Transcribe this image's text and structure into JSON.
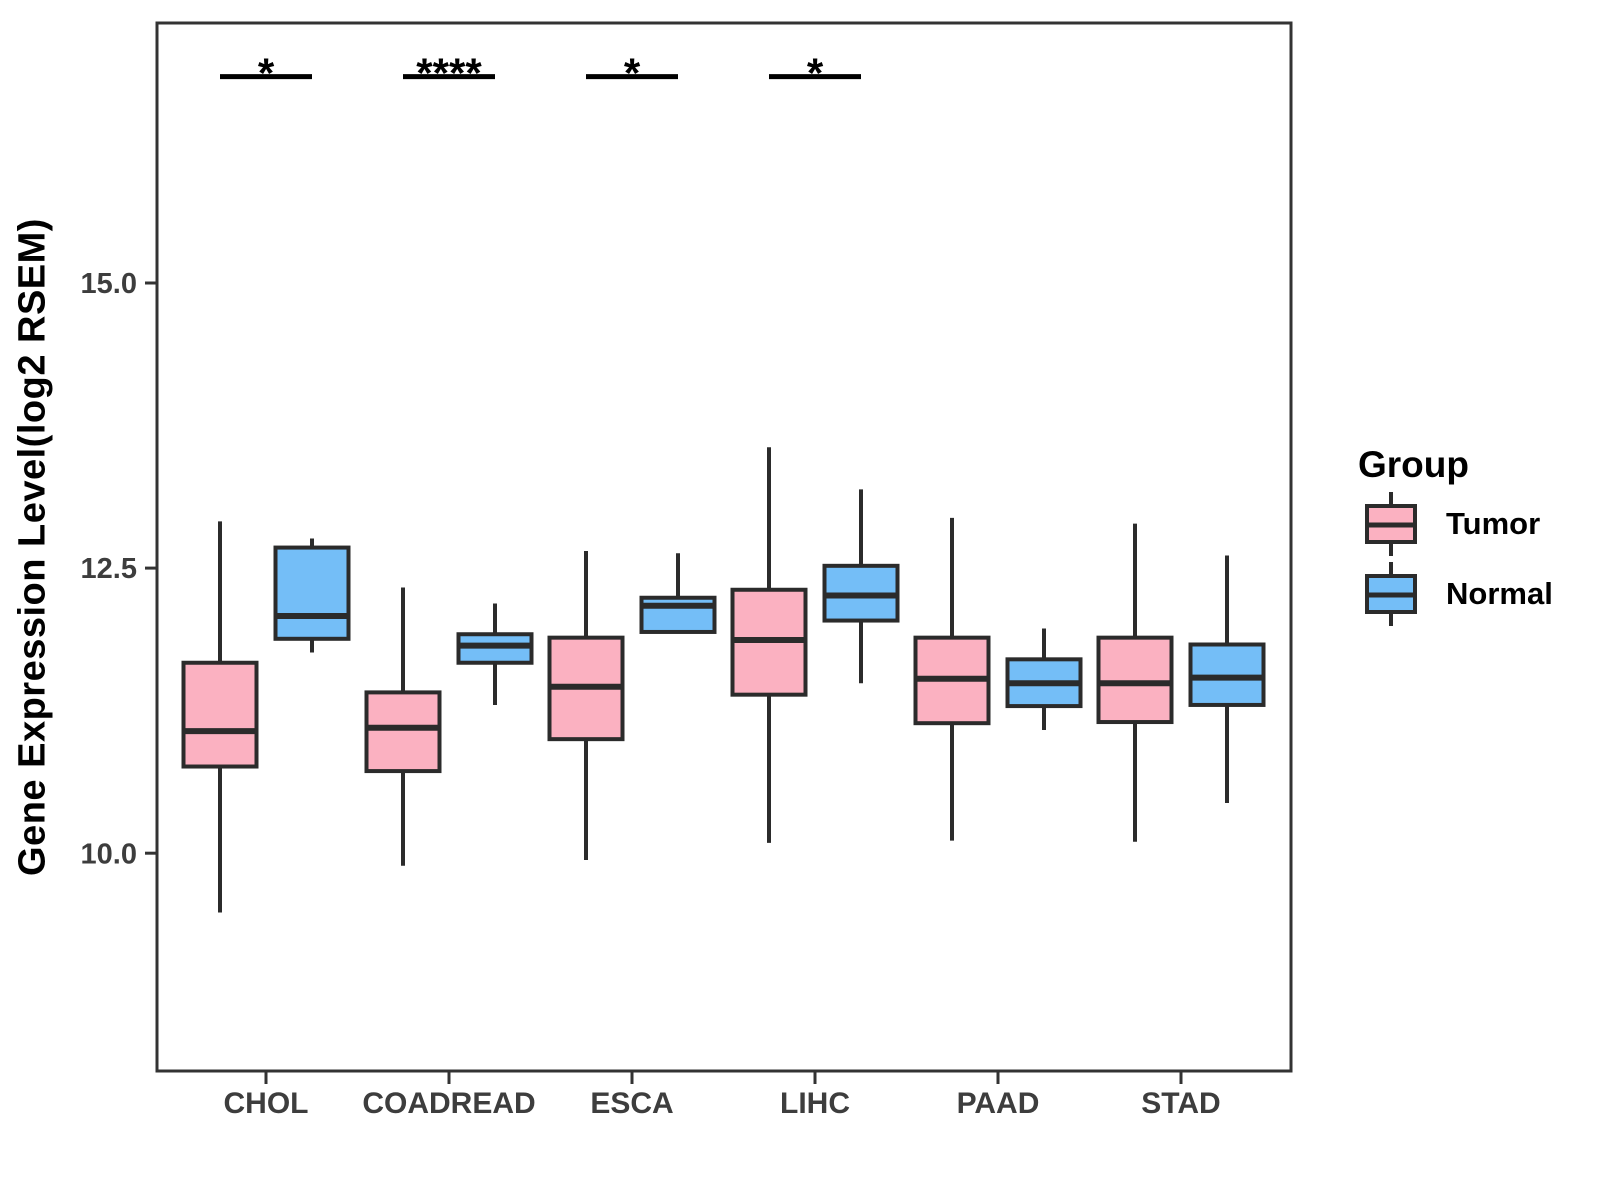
{
  "figure": {
    "legend": {
      "title": "Group",
      "position": "right"
    }
  },
  "colors": {
    "tumor_fill": "#FBB1C1",
    "normal_fill": "#74BEF7",
    "box_stroke": "#2B2B2B",
    "panel_border": "#333333",
    "axis_text": "#3D3D3D",
    "annotation": "#000000",
    "background": "#FFFFFF"
  },
  "chart_data": {
    "type": "boxplot",
    "title": "",
    "xlabel": "",
    "ylabel": "Gene Expression Level(log2 RSEM)",
    "categories": [
      "CHOL",
      "COADREAD",
      "ESCA",
      "LIHC",
      "PAAD",
      "STAD"
    ],
    "y_ticks": [
      {
        "value": 15.0,
        "label": "15.0"
      },
      {
        "value": 12.5,
        "label": "12.5"
      },
      {
        "value": 10.0,
        "label": "10.0"
      }
    ],
    "ylim": [
      8.09,
      17.28
    ],
    "grid": false,
    "legend_position": "right",
    "series": [
      {
        "name": "Tumor",
        "color": "#FBB1C1",
        "boxes": [
          {
            "category": "CHOL",
            "low": 9.48,
            "q1": 10.76,
            "median": 11.07,
            "q3": 11.67,
            "high": 12.91
          },
          {
            "category": "COADREAD",
            "low": 9.89,
            "q1": 10.72,
            "median": 11.1,
            "q3": 11.41,
            "high": 12.33
          },
          {
            "category": "ESCA",
            "low": 9.94,
            "q1": 11.0,
            "median": 11.46,
            "q3": 11.89,
            "high": 12.65
          },
          {
            "category": "LIHC",
            "low": 10.09,
            "q1": 11.39,
            "median": 11.87,
            "q3": 12.31,
            "high": 13.56
          },
          {
            "category": "PAAD",
            "low": 10.11,
            "q1": 11.14,
            "median": 11.53,
            "q3": 11.89,
            "high": 12.94
          },
          {
            "category": "STAD",
            "low": 10.1,
            "q1": 11.15,
            "median": 11.49,
            "q3": 11.89,
            "high": 12.89
          }
        ]
      },
      {
        "name": "Normal",
        "color": "#74BEF7",
        "boxes": [
          {
            "category": "CHOL",
            "low": 11.76,
            "q1": 11.88,
            "median": 12.08,
            "q3": 12.68,
            "high": 12.76
          },
          {
            "category": "COADREAD",
            "low": 11.3,
            "q1": 11.67,
            "median": 11.82,
            "q3": 11.92,
            "high": 12.19
          },
          {
            "category": "ESCA",
            "low": 11.94,
            "q1": 11.94,
            "median": 12.17,
            "q3": 12.24,
            "high": 12.63
          },
          {
            "category": "LIHC",
            "low": 11.49,
            "q1": 12.04,
            "median": 12.26,
            "q3": 12.52,
            "high": 13.19
          },
          {
            "category": "PAAD",
            "low": 11.08,
            "q1": 11.29,
            "median": 11.49,
            "q3": 11.7,
            "high": 11.97
          },
          {
            "category": "STAD",
            "low": 10.44,
            "q1": 11.3,
            "median": 11.54,
            "q3": 11.83,
            "high": 12.61
          }
        ]
      }
    ],
    "significance": [
      {
        "category": "CHOL",
        "label": "*",
        "bar_y": 16.81,
        "label_y": 16.97
      },
      {
        "category": "COADREAD",
        "label": "****",
        "bar_y": 16.81,
        "label_y": 16.97
      },
      {
        "category": "ESCA",
        "label": "*",
        "bar_y": 16.81,
        "label_y": 16.97
      },
      {
        "category": "LIHC",
        "label": "*",
        "bar_y": 16.81,
        "label_y": 16.97
      }
    ]
  }
}
